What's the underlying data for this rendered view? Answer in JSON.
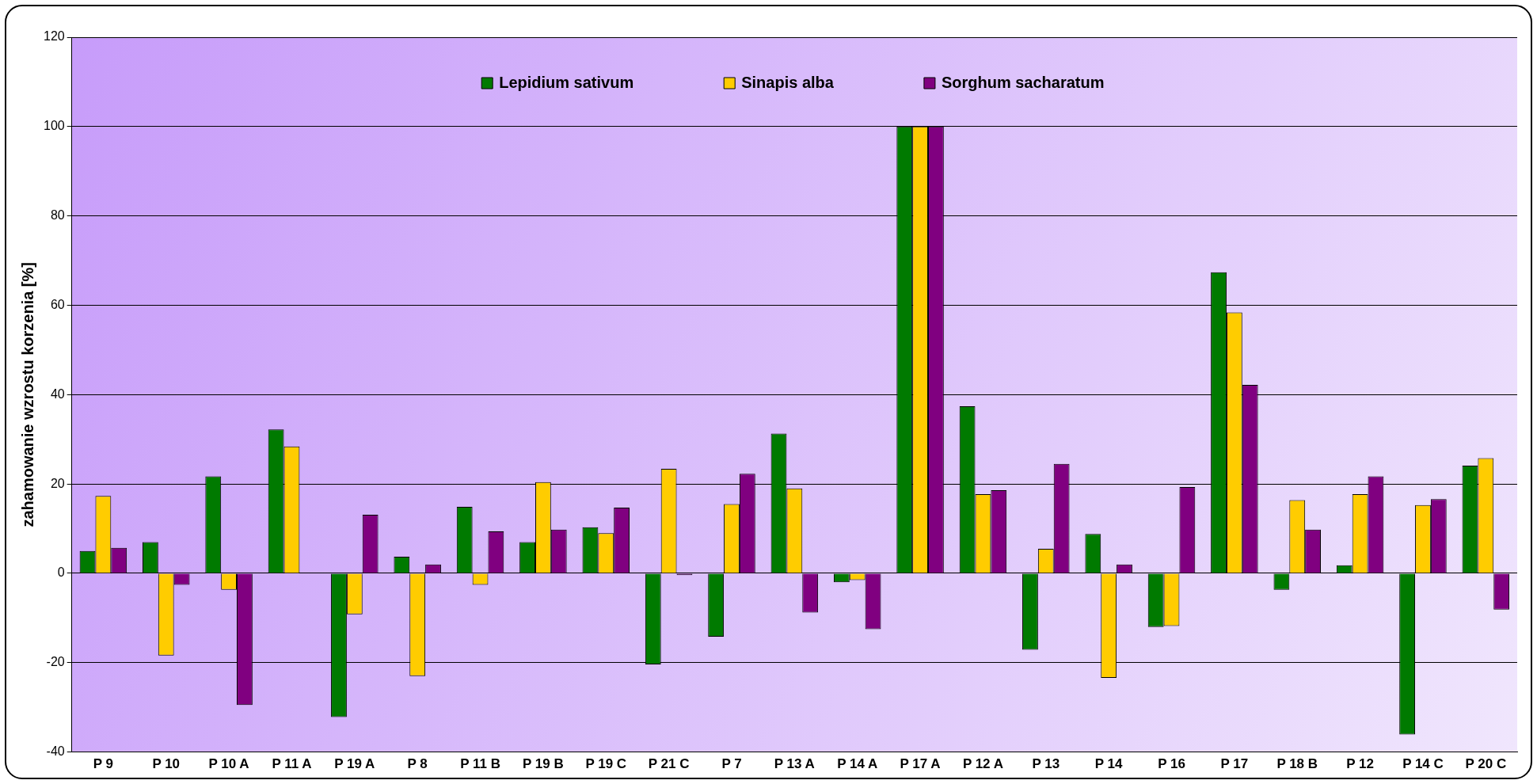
{
  "chart_data": {
    "type": "bar",
    "ylabel": "zahamowanie wzrostu korzenia [%]",
    "categories": [
      "P 9",
      "P 10",
      "P 10 A",
      "P 11 A",
      "P 19 A",
      "P 8",
      "P 11 B",
      "P 19 B",
      "P 19 C",
      "P 21 C",
      "P 7",
      "P 13 A",
      "P 14 A",
      "P 17 A",
      "P 12 A",
      "P 13",
      "P 14",
      "P 16",
      "P 17",
      "P 18 B",
      "P 12",
      "P 14 C",
      "P 20 C"
    ],
    "series": [
      {
        "name": "Lepidium sativum",
        "color": "#007a00",
        "values": [
          5.0,
          7.0,
          21.7,
          32.2,
          -32.2,
          3.7,
          14.9,
          7.0,
          10.3,
          -20.4,
          -14.2,
          31.3,
          -2.0,
          100,
          37.4,
          -17.1,
          8.8,
          -12.0,
          67.4,
          -3.7,
          1.8,
          -36.1,
          24.1
        ]
      },
      {
        "name": "Sinapis alba",
        "color": "#ffcc00",
        "values": [
          17.3,
          -18.4,
          -3.7,
          28.4,
          -9.2,
          -23.0,
          -2.6,
          20.4,
          9.0,
          23.4,
          15.5,
          19.0,
          -1.5,
          100,
          17.7,
          5.5,
          -23.4,
          -11.8,
          58.4,
          16.4,
          17.7,
          15.3,
          25.8
        ]
      },
      {
        "name": "Sorghum sacharatum",
        "color": "#800080",
        "values": [
          5.7,
          -2.6,
          -29.5,
          null,
          13.1,
          2.0,
          9.4,
          9.8,
          14.7,
          -0.4,
          22.3,
          -8.8,
          -12.5,
          100,
          18.6,
          24.5,
          2.0,
          19.3,
          42.2,
          9.8,
          21.7,
          16.6,
          -8.1
        ]
      }
    ],
    "ylim": [
      -40,
      120
    ],
    "yticks": [
      -40,
      -20,
      0,
      20,
      40,
      60,
      80,
      100,
      120
    ],
    "grid": "y",
    "legend": "top"
  }
}
